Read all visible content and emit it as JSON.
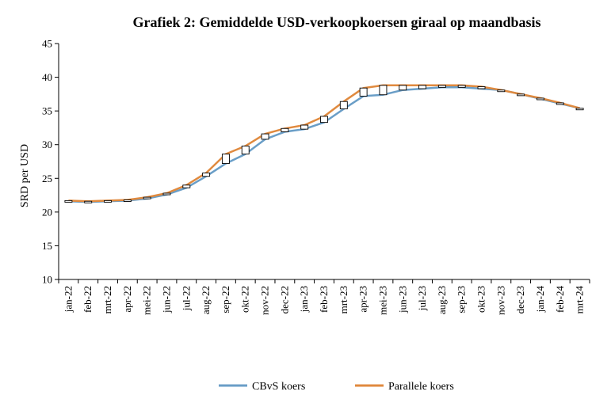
{
  "chart_data": {
    "type": "line",
    "title": "Grafiek 2: Gemiddelde USD-verkoopkoersen giraal op maandbasis",
    "ylabel": "SRD per USD",
    "xlabel": "",
    "ylim": [
      10,
      45
    ],
    "yticks": [
      10,
      15,
      20,
      25,
      30,
      35,
      40,
      45
    ],
    "grid": false,
    "legend_position": "bottom",
    "categories": [
      "jan-22",
      "feb-22",
      "mrt-22",
      "apr-22",
      "mei-22",
      "jun-22",
      "jul-22",
      "aug-22",
      "sep-22",
      "okt-22",
      "nov-22",
      "dec-22",
      "jan-23",
      "feb-23",
      "mrt-23",
      "apr-23",
      "mei-23",
      "jun-23",
      "jul-23",
      "aug-23",
      "sep-23",
      "okt-23",
      "nov-23",
      "dec-23",
      "jan-24",
      "feb-24",
      "mrt-24"
    ],
    "series": [
      {
        "name": "CBvS koers",
        "color": "#6a9ec7",
        "values": [
          21.6,
          21.5,
          21.6,
          21.7,
          22.0,
          22.6,
          23.6,
          25.3,
          27.2,
          28.6,
          30.8,
          31.9,
          32.3,
          33.3,
          35.3,
          37.2,
          37.4,
          38.1,
          38.3,
          38.5,
          38.5,
          38.3,
          38.1,
          37.5,
          36.8,
          36.1,
          35.4
        ]
      },
      {
        "name": "Parallele koers",
        "color": "#e08a3f",
        "values": [
          21.7,
          21.6,
          21.7,
          21.8,
          22.2,
          22.8,
          24.0,
          25.8,
          28.6,
          29.8,
          31.6,
          32.4,
          32.9,
          34.2,
          36.4,
          38.4,
          38.8,
          38.8,
          38.8,
          38.8,
          38.8,
          38.6,
          38.1,
          37.5,
          36.9,
          36.2,
          35.4
        ]
      }
    ]
  }
}
